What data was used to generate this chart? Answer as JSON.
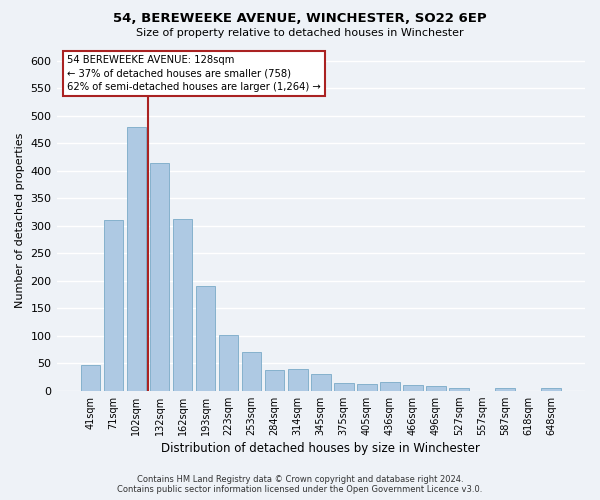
{
  "title1": "54, BEREWEEKE AVENUE, WINCHESTER, SO22 6EP",
  "title2": "Size of property relative to detached houses in Winchester",
  "xlabel": "Distribution of detached houses by size in Winchester",
  "ylabel": "Number of detached properties",
  "categories": [
    "41sqm",
    "71sqm",
    "102sqm",
    "132sqm",
    "162sqm",
    "193sqm",
    "223sqm",
    "253sqm",
    "284sqm",
    "314sqm",
    "345sqm",
    "375sqm",
    "405sqm",
    "436sqm",
    "466sqm",
    "496sqm",
    "527sqm",
    "557sqm",
    "587sqm",
    "618sqm",
    "648sqm"
  ],
  "values": [
    46,
    311,
    480,
    415,
    313,
    190,
    102,
    70,
    38,
    40,
    30,
    14,
    12,
    15,
    10,
    8,
    5,
    0,
    5,
    0,
    5
  ],
  "bar_color": "#aec9e3",
  "bar_edge_color": "#7aaac8",
  "vline_color": "#aa2222",
  "vline_x_index": 3,
  "annotation_text_line1": "54 BEREWEEKE AVENUE: 128sqm",
  "annotation_text_line2": "← 37% of detached houses are smaller (758)",
  "annotation_text_line3": "62% of semi-detached houses are larger (1,264) →",
  "annotation_box_edgecolor": "#aa2222",
  "ylim_max": 620,
  "yticks": [
    0,
    50,
    100,
    150,
    200,
    250,
    300,
    350,
    400,
    450,
    500,
    550,
    600
  ],
  "footer1": "Contains HM Land Registry data © Crown copyright and database right 2024.",
  "footer2": "Contains public sector information licensed under the Open Government Licence v3.0.",
  "bg_color": "#eef2f7",
  "grid_color": "#ffffff"
}
